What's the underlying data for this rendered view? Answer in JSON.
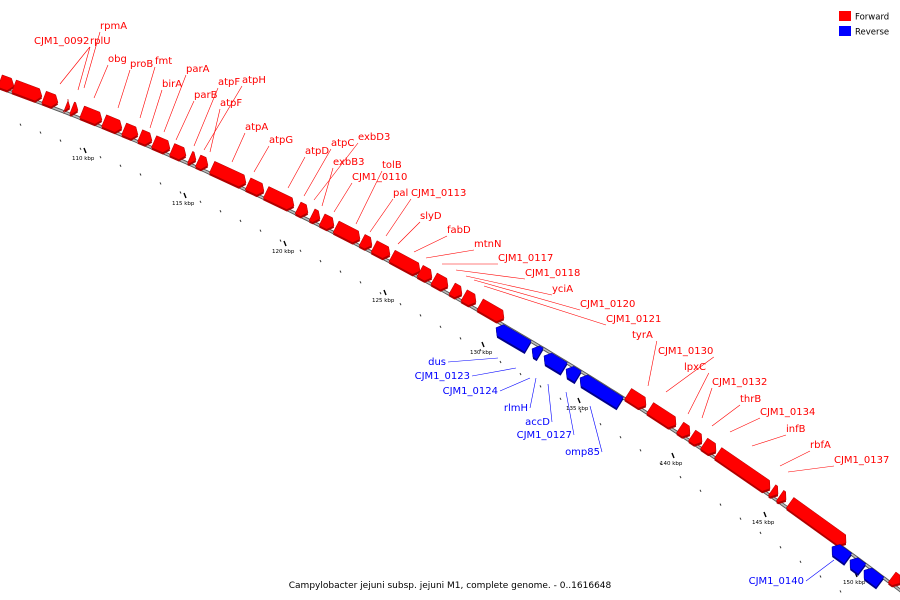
{
  "caption": "Campylobacter jejuni subsp. jejuni M1, complete genome. - 0..1616648",
  "legend": [
    {
      "label": "Forward",
      "color": "#ff0000"
    },
    {
      "label": "Reverse",
      "color": "#0000ff"
    }
  ],
  "colors": {
    "forward": "#ff0000",
    "reverse": "#0000ff",
    "backbone": "#888888"
  },
  "scale_labels": [
    "110 kbp",
    "115 kbp",
    "120 kbp",
    "125 kbp",
    "130 kbp",
    "135 kbp",
    "140 kbp",
    "145 kbp",
    "150 kbp"
  ],
  "genes_forward": [
    "CJM1_0092",
    "rplU",
    "rpmA",
    "obg",
    "proB",
    "fmt",
    "birA",
    "parA",
    "parB",
    "atpF",
    "atpH",
    "atpF",
    "atpA",
    "atpG",
    "atpD",
    "atpC",
    "exbD3",
    "exbB3",
    "CJM1_0110",
    "tolB",
    "pal",
    "CJM1_0113",
    "slyD",
    "fabD",
    "mtnN",
    "CJM1_0117",
    "CJM1_0118",
    "yciA",
    "CJM1_0120",
    "CJM1_0121",
    "tyrA",
    "CJM1_0130",
    "lpxC",
    "CJM1_0132",
    "thrB",
    "CJM1_0134",
    "infB",
    "rbfA",
    "CJM1_0137"
  ],
  "genes_reverse": [
    "dus",
    "CJM1_0123",
    "CJM1_0124",
    "rlmH",
    "accD",
    "CJM1_0127",
    "omp85",
    "CJM1_0140"
  ]
}
